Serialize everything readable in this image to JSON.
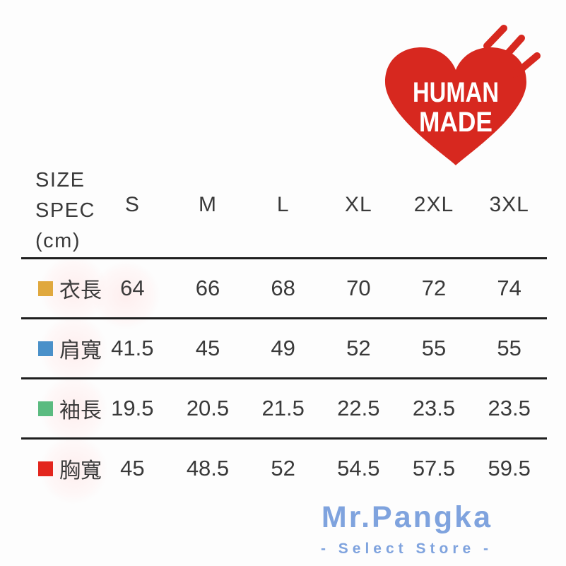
{
  "logo": {
    "icon": "heart-with-speed-lines",
    "heart_color": "#D7281F",
    "text_lines": [
      "HUMAN",
      "MADE"
    ],
    "text_color": "#FFFFFF"
  },
  "header": {
    "spec_lines": [
      "SIZE",
      "SPEC",
      "(cm)"
    ]
  },
  "chart_data": {
    "type": "table",
    "title": "SIZE SPEC (cm)",
    "columns": [
      "S",
      "M",
      "L",
      "XL",
      "2XL",
      "3XL"
    ],
    "rows": [
      {
        "label": "衣長",
        "swatch_color": "#E0A83D",
        "values": [
          "64",
          "66",
          "68",
          "70",
          "72",
          "74"
        ]
      },
      {
        "label": "肩寬",
        "swatch_color": "#4A90C9",
        "values": [
          "41.5",
          "45",
          "49",
          "52",
          "55",
          "55"
        ]
      },
      {
        "label": "袖長",
        "swatch_color": "#5BBB80",
        "values": [
          "19.5",
          "20.5",
          "21.5",
          "22.5",
          "23.5",
          "23.5"
        ]
      },
      {
        "label": "胸寬",
        "swatch_color": "#E3251D",
        "values": [
          "45",
          "48.5",
          "52",
          "54.5",
          "57.5",
          "59.5"
        ]
      }
    ]
  },
  "watermark": {
    "title": "Mr.Pangka",
    "subtitle": "- Select Store -",
    "color": "#7FA3DE"
  }
}
